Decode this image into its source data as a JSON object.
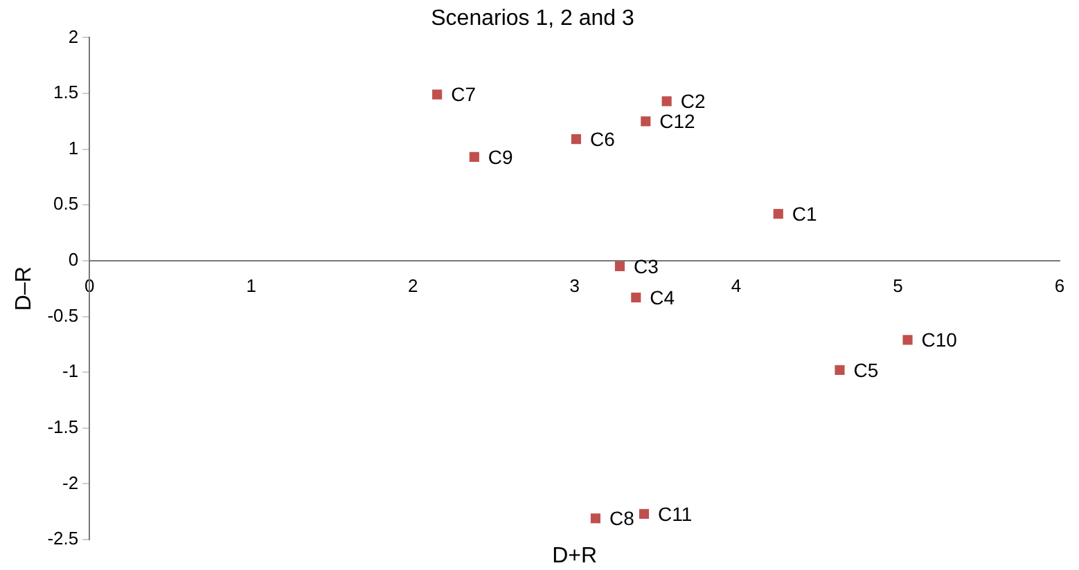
{
  "chart_data": {
    "type": "scatter",
    "title": "Scenarios 1, 2 and 3",
    "xlabel": "D+R",
    "ylabel": "D–R",
    "x": [
      2.15,
      3.57,
      3.44,
      3.01,
      2.38,
      4.26,
      3.28,
      3.38,
      5.06,
      4.64,
      3.13,
      3.43
    ],
    "series": [
      {
        "color": "#c0504d",
        "values": [
          1.49,
          1.43,
          1.25,
          1.09,
          0.93,
          0.42,
          -0.05,
          -0.33,
          -0.71,
          -0.98,
          -2.31,
          -2.27
        ]
      }
    ],
    "annotations": [
      {
        "text": "C7",
        "x": 2.15,
        "y": 1.49
      },
      {
        "text": "C2",
        "x": 3.57,
        "y": 1.43
      },
      {
        "text": "C12",
        "x": 3.44,
        "y": 1.25
      },
      {
        "text": "C6",
        "x": 3.01,
        "y": 1.09
      },
      {
        "text": "C9",
        "x": 2.38,
        "y": 0.93
      },
      {
        "text": "C1",
        "x": 4.26,
        "y": 0.42
      },
      {
        "text": "C3",
        "x": 3.28,
        "y": -0.05
      },
      {
        "text": "C4",
        "x": 3.38,
        "y": -0.33
      },
      {
        "text": "C10",
        "x": 5.06,
        "y": -0.71
      },
      {
        "text": "C5",
        "x": 4.64,
        "y": -0.98
      },
      {
        "text": "C8",
        "x": 3.13,
        "y": -2.31
      },
      {
        "text": "C11",
        "x": 3.43,
        "y": -2.27
      }
    ],
    "xlim": [
      0,
      6
    ],
    "xticks": [
      0,
      1,
      2,
      3,
      4,
      5,
      6
    ],
    "ylim": [
      -2.5,
      2
    ],
    "yticks": [
      -2.5,
      -2,
      -1.5,
      -1,
      -0.5,
      0,
      0.5,
      1,
      1.5,
      2
    ],
    "grid": false,
    "legend": false,
    "marker": "square"
  }
}
